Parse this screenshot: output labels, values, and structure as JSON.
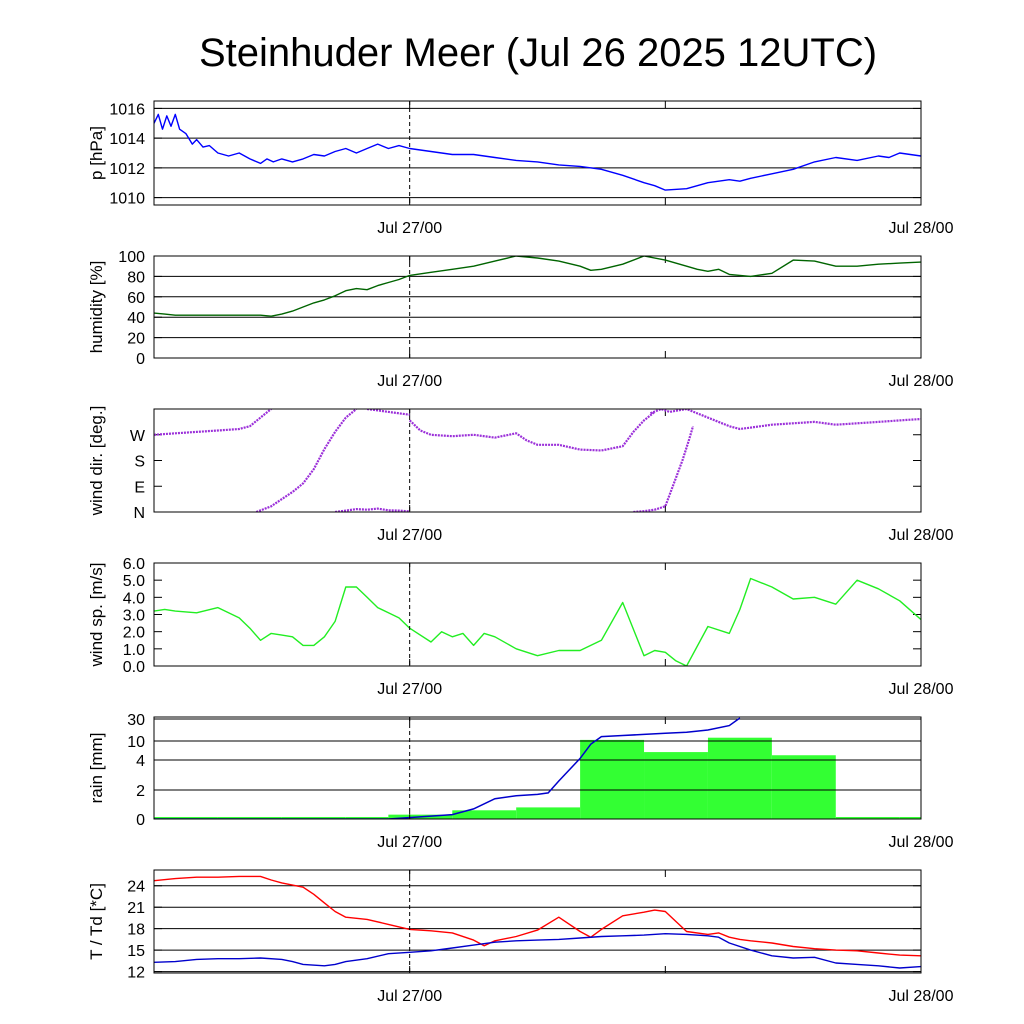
{
  "title": "Steinhuder Meer (Jul 26 2025 12UTC)",
  "colors": {
    "pressure": "#0000ff",
    "humidity": "#006400",
    "wind_dir": "#9b30d9",
    "wind_speed": "#22ee22",
    "rain_bars": "#33ff33",
    "rain_line": "#0000cc",
    "temperature": "#ff0000",
    "dewpoint": "#0000cc"
  },
  "chart_data": [
    {
      "id": "pressure",
      "type": "line",
      "ylabel": "p [hPa]",
      "ylim": [
        1009.5,
        1016.5
      ],
      "yticks": [
        "1010",
        "1012",
        "1014",
        "1016"
      ],
      "ytick_values": [
        1010,
        1012,
        1014,
        1016
      ],
      "xticks": [
        "Jul 27/00",
        "Jul 28/00"
      ],
      "x_range_hours": [
        0,
        36
      ],
      "vline_hour": 12,
      "grid": true,
      "series": [
        {
          "color_key": "pressure",
          "x": [
            0,
            0.2,
            0.4,
            0.6,
            0.8,
            1.0,
            1.2,
            1.5,
            1.8,
            2.0,
            2.3,
            2.6,
            3.0,
            3.5,
            4.0,
            4.5,
            5.0,
            5.3,
            5.6,
            6.0,
            6.5,
            7.0,
            7.5,
            8.0,
            8.5,
            9.0,
            9.5,
            10.0,
            10.5,
            11.0,
            11.5,
            12.0,
            13.0,
            14.0,
            15.0,
            16.0,
            17.0,
            18.0,
            19.0,
            20.0,
            21.0,
            22.0,
            23.0,
            23.5,
            24.0,
            25.0,
            26.0,
            26.5,
            27.0,
            27.5,
            28.0,
            29.0,
            30.0,
            31.0,
            32.0,
            33.0,
            34.0,
            34.5,
            35.0,
            35.5,
            36.0
          ],
          "y": [
            1015.0,
            1015.6,
            1014.6,
            1015.5,
            1014.8,
            1015.6,
            1014.6,
            1014.3,
            1013.6,
            1013.9,
            1013.4,
            1013.5,
            1013.0,
            1012.8,
            1013.0,
            1012.6,
            1012.3,
            1012.6,
            1012.4,
            1012.6,
            1012.4,
            1012.6,
            1012.9,
            1012.8,
            1013.1,
            1013.3,
            1013.0,
            1013.3,
            1013.6,
            1013.3,
            1013.5,
            1013.3,
            1013.1,
            1012.9,
            1012.9,
            1012.7,
            1012.5,
            1012.4,
            1012.2,
            1012.1,
            1011.9,
            1011.5,
            1011.0,
            1010.8,
            1010.5,
            1010.6,
            1011.0,
            1011.1,
            1011.2,
            1011.1,
            1011.3,
            1011.6,
            1011.9,
            1012.4,
            1012.7,
            1012.5,
            1012.8,
            1012.7,
            1013.0,
            1012.9,
            1012.8
          ]
        }
      ]
    },
    {
      "id": "humidity",
      "type": "line",
      "ylabel": "humidity [%]",
      "ylim": [
        0,
        100
      ],
      "yticks": [
        "0",
        "20",
        "40",
        "60",
        "80",
        "100"
      ],
      "ytick_values": [
        0,
        20,
        40,
        60,
        80,
        100
      ],
      "xticks": [
        "Jul 27/00",
        "Jul 28/00"
      ],
      "x_range_hours": [
        0,
        36
      ],
      "vline_hour": 12,
      "grid": true,
      "series": [
        {
          "color_key": "humidity",
          "x": [
            0,
            0.5,
            1,
            2,
            3,
            4,
            4.5,
            5,
            5.5,
            6,
            6.5,
            7,
            7.5,
            8,
            8.5,
            9,
            9.5,
            10,
            10.5,
            11,
            11.5,
            12,
            13,
            14,
            15,
            16,
            17,
            18,
            19,
            20,
            20.5,
            21,
            22,
            23,
            24,
            25,
            25.5,
            26,
            26.5,
            27,
            28,
            29,
            30,
            31,
            32,
            33,
            34,
            35,
            36
          ],
          "y": [
            44,
            43,
            42,
            42,
            42,
            42,
            42,
            42,
            41,
            43,
            46,
            50,
            54,
            57,
            61,
            66,
            68,
            67,
            71,
            74,
            77,
            81,
            84,
            87,
            90,
            95,
            100,
            98,
            95,
            90,
            86,
            87,
            92,
            100,
            96,
            90,
            87,
            85,
            87,
            82,
            80,
            83,
            96,
            95,
            90,
            90,
            92,
            93,
            94
          ]
        }
      ]
    },
    {
      "id": "wind_dir",
      "type": "scatter",
      "ylabel": "wind dir. [deg.]",
      "ylim": [
        0,
        360
      ],
      "yticks": [
        "N",
        "E",
        "S",
        "W"
      ],
      "ytick_values": [
        0,
        90,
        180,
        270
      ],
      "xticks": [
        "Jul 27/00",
        "Jul 28/00"
      ],
      "x_range_hours": [
        0,
        36
      ],
      "vline_hour": 12,
      "grid": false,
      "series": [
        {
          "color_key": "wind_dir",
          "x": [
            0,
            1,
            2,
            3,
            4,
            4.5,
            5,
            5.5
          ],
          "y": [
            270,
            275,
            280,
            285,
            290,
            300,
            330,
            360
          ]
        },
        {
          "color_key": "wind_dir",
          "x": [
            4.8,
            5.5,
            6,
            6.5,
            7,
            7.5,
            8,
            8.5,
            9,
            9.5
          ],
          "y": [
            0,
            20,
            45,
            70,
            100,
            150,
            220,
            280,
            330,
            360
          ]
        },
        {
          "color_key": "wind_dir",
          "x": [
            8.5,
            9,
            9.5,
            10,
            10.5,
            11,
            11.5,
            12
          ],
          "y": [
            0,
            5,
            10,
            8,
            12,
            6,
            5,
            2
          ]
        },
        {
          "color_key": "wind_dir",
          "x": [
            10,
            10.5,
            11,
            11.5,
            12
          ],
          "y": [
            360,
            355,
            350,
            345,
            340
          ]
        },
        {
          "color_key": "wind_dir",
          "x": [
            12,
            12.5,
            13,
            14,
            15,
            16,
            17,
            17.5,
            18,
            19,
            20,
            21,
            22,
            22.5,
            23,
            23.5
          ],
          "y": [
            320,
            285,
            270,
            265,
            270,
            260,
            275,
            250,
            235,
            235,
            218,
            215,
            230,
            280,
            320,
            350
          ]
        },
        {
          "color_key": "wind_dir",
          "x": [
            22.5,
            23,
            23.5,
            24,
            24.2,
            24.5,
            24.8,
            25.1,
            25.3
          ],
          "y": [
            0,
            3,
            8,
            20,
            60,
            120,
            180,
            250,
            300
          ]
        },
        {
          "color_key": "wind_dir",
          "x": [
            23.3,
            23.8,
            24.2,
            25,
            26,
            27,
            27.5,
            28,
            29,
            30,
            31,
            32,
            33,
            34,
            35,
            36
          ],
          "y": [
            345,
            360,
            350,
            360,
            330,
            300,
            290,
            295,
            305,
            310,
            315,
            305,
            310,
            315,
            320,
            325
          ]
        }
      ]
    },
    {
      "id": "wind_speed",
      "type": "line",
      "ylabel": "wind sp. [m/s]",
      "ylim": [
        0,
        6
      ],
      "yticks": [
        "0.0",
        "1.0",
        "2.0",
        "3.0",
        "4.0",
        "5.0",
        "6.0"
      ],
      "ytick_values": [
        0,
        1,
        2,
        3,
        4,
        5,
        6
      ],
      "xticks": [
        "Jul 27/00",
        "Jul 28/00"
      ],
      "x_range_hours": [
        0,
        36
      ],
      "vline_hour": 12,
      "grid": false,
      "series": [
        {
          "color_key": "wind_speed",
          "x": [
            0,
            0.5,
            1,
            2,
            3,
            4,
            4.5,
            5,
            5.5,
            6,
            6.5,
            7,
            7.5,
            8,
            8.5,
            9,
            9.5,
            10,
            10.5,
            11,
            11.5,
            12,
            13,
            13.5,
            14,
            14.5,
            15,
            15.5,
            16,
            17,
            18,
            19,
            20,
            21,
            22,
            23,
            23.5,
            24,
            24.5,
            25,
            26,
            27,
            27.5,
            28,
            29,
            30,
            31,
            32,
            33,
            34,
            35,
            36
          ],
          "y": [
            3.2,
            3.3,
            3.2,
            3.1,
            3.4,
            2.8,
            2.2,
            1.5,
            1.9,
            1.8,
            1.7,
            1.2,
            1.2,
            1.7,
            2.6,
            4.6,
            4.6,
            4.0,
            3.4,
            3.1,
            2.8,
            2.2,
            1.4,
            2.0,
            1.7,
            1.9,
            1.2,
            1.9,
            1.7,
            1.0,
            0.6,
            0.9,
            0.9,
            1.5,
            3.7,
            0.6,
            0.9,
            0.8,
            0.3,
            0.0,
            2.3,
            1.9,
            3.3,
            5.1,
            4.6,
            3.9,
            4.0,
            3.6,
            5.0,
            4.5,
            3.8,
            2.7
          ]
        }
      ]
    },
    {
      "id": "rain",
      "type": "bar",
      "ylabel": "rain [mm]",
      "yticks": [
        "0",
        "2",
        "4",
        "10",
        "30"
      ],
      "ytick_values": [
        0,
        2,
        4,
        10,
        30
      ],
      "xticks": [
        "Jul 27/00",
        "Jul 28/00"
      ],
      "x_range_hours": [
        0,
        36
      ],
      "vline_hour": 12,
      "grid": true,
      "bars": {
        "color_key": "rain_bars",
        "x_start": [
          0,
          3,
          6,
          9,
          11,
          14,
          17,
          20,
          23,
          26,
          29,
          32,
          35
        ],
        "x_end": [
          3,
          6,
          9,
          11,
          14,
          17,
          20,
          23,
          26,
          29,
          32,
          35,
          36
        ],
        "values": [
          0,
          0,
          0,
          0,
          0.3,
          0.6,
          0.8,
          11,
          6.5,
          13,
          5.5,
          0,
          0
        ]
      },
      "accumulated": {
        "color_key": "rain_line",
        "x": [
          0,
          10,
          11,
          13,
          14,
          15,
          16,
          17,
          18,
          18.5,
          19,
          20,
          20.5,
          21,
          22,
          23,
          24,
          25,
          26,
          27,
          27.5
        ],
        "y": [
          0,
          0,
          0,
          0.2,
          0.3,
          0.7,
          1.4,
          1.6,
          1.7,
          1.8,
          2.6,
          4.5,
          9,
          14,
          15,
          16,
          17,
          18,
          20,
          24,
          32
        ]
      }
    },
    {
      "id": "temp_dewpoint",
      "type": "line",
      "ylabel": "T / Td [*C]",
      "ylim": [
        11.8,
        26.2
      ],
      "yticks": [
        "12",
        "15",
        "18",
        "21",
        "24"
      ],
      "ytick_values": [
        12,
        15,
        18,
        21,
        24
      ],
      "xticks": [
        "Jul 27/00",
        "Jul 28/00"
      ],
      "x_range_hours": [
        0,
        36
      ],
      "vline_hour": 12,
      "grid": true,
      "series": [
        {
          "name": "T",
          "color_key": "temperature",
          "x": [
            0,
            1,
            2,
            3,
            4,
            5,
            5.5,
            6,
            7,
            7.5,
            8,
            8.5,
            9,
            10,
            11,
            12,
            13,
            14,
            15,
            15.5,
            16,
            17,
            18,
            19,
            20,
            20.5,
            21,
            22,
            23,
            23.5,
            24,
            25,
            26,
            26.5,
            27,
            27.5,
            28,
            29,
            30,
            31,
            32,
            33,
            34,
            35,
            36
          ],
          "y": [
            24.7,
            25,
            25.2,
            25.2,
            25.3,
            25.3,
            24.8,
            24.4,
            23.8,
            22.8,
            21.6,
            20.4,
            19.6,
            19.3,
            18.6,
            17.9,
            17.7,
            17.4,
            16.4,
            15.6,
            16.3,
            16.9,
            17.8,
            19.6,
            17.6,
            16.8,
            17.9,
            19.8,
            20.3,
            20.6,
            20.4,
            17.6,
            17.2,
            17.4,
            16.8,
            16.5,
            16.3,
            16.0,
            15.5,
            15.2,
            15.0,
            14.9,
            14.6,
            14.3,
            14.2
          ]
        },
        {
          "name": "Td",
          "color_key": "dewpoint",
          "x": [
            0,
            1,
            2,
            3,
            4,
            5,
            6,
            6.5,
            7,
            8,
            8.5,
            9,
            10,
            11,
            12,
            13,
            14,
            15,
            16,
            17,
            18,
            19,
            20,
            21,
            22,
            23,
            24,
            25,
            26,
            26.5,
            27,
            28,
            29,
            30,
            31,
            32,
            33,
            34,
            35,
            36
          ],
          "y": [
            13.3,
            13.4,
            13.7,
            13.8,
            13.8,
            13.9,
            13.7,
            13.4,
            13.0,
            12.8,
            13.0,
            13.4,
            13.8,
            14.5,
            14.7,
            14.9,
            15.3,
            15.7,
            16.1,
            16.3,
            16.4,
            16.5,
            16.7,
            16.9,
            17.0,
            17.1,
            17.3,
            17.2,
            17.0,
            16.8,
            16.0,
            15.0,
            14.2,
            13.9,
            14.0,
            13.2,
            13.0,
            12.8,
            12.5,
            12.7
          ]
        }
      ]
    }
  ]
}
